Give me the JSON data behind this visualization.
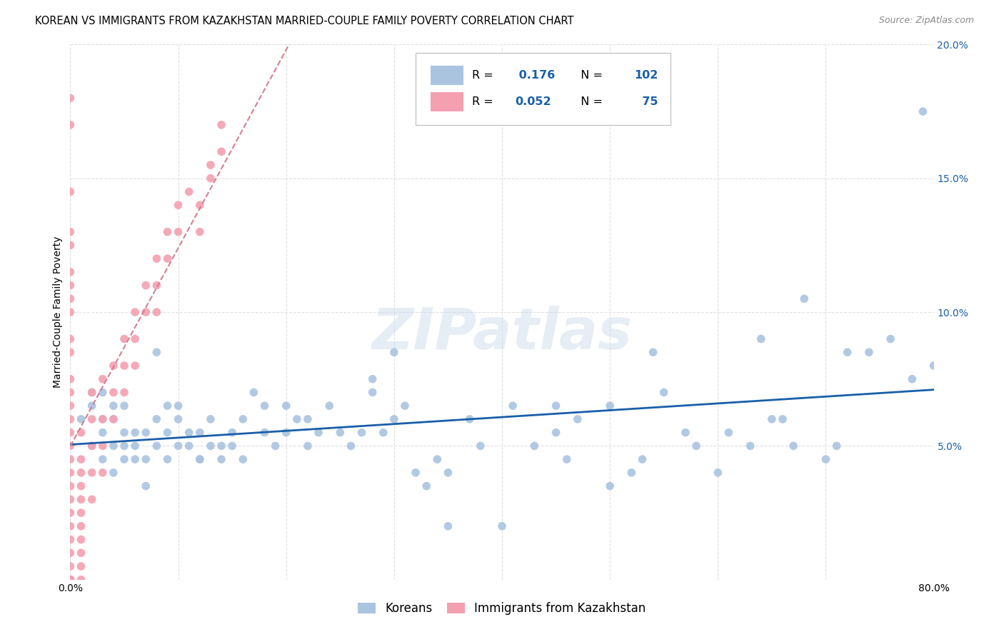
{
  "title": "KOREAN VS IMMIGRANTS FROM KAZAKHSTAN MARRIED-COUPLE FAMILY POVERTY CORRELATION CHART",
  "source": "Source: ZipAtlas.com",
  "ylabel": "Married-Couple Family Poverty",
  "xlabel": "",
  "xlim": [
    0,
    0.8
  ],
  "ylim": [
    0,
    0.2
  ],
  "xticks": [
    0.0,
    0.1,
    0.2,
    0.3,
    0.4,
    0.5,
    0.6,
    0.7,
    0.8
  ],
  "yticks": [
    0.0,
    0.05,
    0.1,
    0.15,
    0.2
  ],
  "background_color": "#ffffff",
  "grid_color": "#e0e0e0",
  "watermark": "ZIPatlas",
  "korean_color": "#aac4e0",
  "kazakh_color": "#f4a0b0",
  "korean_line_color": "#1a5fa8",
  "kazakh_line_color": "#d48090",
  "korean_R": 0.176,
  "korean_N": 102,
  "kazakh_R": 0.052,
  "kazakh_N": 75,
  "korean_scatter_x": [
    0.01,
    0.02,
    0.02,
    0.02,
    0.03,
    0.03,
    0.03,
    0.03,
    0.04,
    0.04,
    0.04,
    0.04,
    0.05,
    0.05,
    0.05,
    0.05,
    0.06,
    0.06,
    0.06,
    0.07,
    0.07,
    0.07,
    0.08,
    0.08,
    0.08,
    0.09,
    0.09,
    0.09,
    0.1,
    0.1,
    0.1,
    0.11,
    0.11,
    0.12,
    0.12,
    0.12,
    0.13,
    0.13,
    0.14,
    0.14,
    0.15,
    0.15,
    0.16,
    0.16,
    0.17,
    0.18,
    0.18,
    0.19,
    0.2,
    0.2,
    0.21,
    0.22,
    0.22,
    0.23,
    0.24,
    0.25,
    0.26,
    0.27,
    0.28,
    0.28,
    0.29,
    0.3,
    0.3,
    0.31,
    0.32,
    0.33,
    0.34,
    0.35,
    0.35,
    0.37,
    0.38,
    0.4,
    0.41,
    0.43,
    0.45,
    0.45,
    0.46,
    0.47,
    0.5,
    0.5,
    0.52,
    0.53,
    0.54,
    0.55,
    0.57,
    0.58,
    0.6,
    0.61,
    0.63,
    0.65,
    0.67,
    0.68,
    0.7,
    0.71,
    0.72,
    0.74,
    0.76,
    0.78,
    0.79,
    0.8,
    0.64,
    0.66
  ],
  "korean_scatter_y": [
    0.06,
    0.07,
    0.065,
    0.05,
    0.07,
    0.045,
    0.055,
    0.06,
    0.06,
    0.05,
    0.04,
    0.065,
    0.045,
    0.065,
    0.055,
    0.05,
    0.05,
    0.045,
    0.055,
    0.055,
    0.035,
    0.045,
    0.085,
    0.06,
    0.05,
    0.065,
    0.045,
    0.055,
    0.06,
    0.065,
    0.05,
    0.05,
    0.055,
    0.045,
    0.055,
    0.045,
    0.05,
    0.06,
    0.045,
    0.05,
    0.05,
    0.055,
    0.045,
    0.06,
    0.07,
    0.055,
    0.065,
    0.05,
    0.055,
    0.065,
    0.06,
    0.06,
    0.05,
    0.055,
    0.065,
    0.055,
    0.05,
    0.055,
    0.075,
    0.07,
    0.055,
    0.06,
    0.085,
    0.065,
    0.04,
    0.035,
    0.045,
    0.04,
    0.02,
    0.06,
    0.05,
    0.02,
    0.065,
    0.05,
    0.055,
    0.065,
    0.045,
    0.06,
    0.035,
    0.065,
    0.04,
    0.045,
    0.085,
    0.07,
    0.055,
    0.05,
    0.04,
    0.055,
    0.05,
    0.06,
    0.05,
    0.105,
    0.045,
    0.05,
    0.085,
    0.085,
    0.09,
    0.075,
    0.175,
    0.08,
    0.09,
    0.06
  ],
  "kazakh_scatter_x": [
    0.0,
    0.0,
    0.0,
    0.0,
    0.0,
    0.0,
    0.0,
    0.0,
    0.0,
    0.0,
    0.0,
    0.0,
    0.0,
    0.0,
    0.0,
    0.0,
    0.0,
    0.0,
    0.0,
    0.0,
    0.01,
    0.01,
    0.01,
    0.01,
    0.01,
    0.01,
    0.01,
    0.02,
    0.02,
    0.02,
    0.02,
    0.02,
    0.03,
    0.03,
    0.03,
    0.03,
    0.04,
    0.04,
    0.04,
    0.05,
    0.05,
    0.05,
    0.06,
    0.06,
    0.06,
    0.07,
    0.07,
    0.08,
    0.08,
    0.08,
    0.09,
    0.09,
    0.1,
    0.1,
    0.11,
    0.12,
    0.12,
    0.13,
    0.13,
    0.14,
    0.14,
    0.0,
    0.0,
    0.0,
    0.0,
    0.0,
    0.0,
    0.0,
    0.0,
    0.0,
    0.0,
    0.01,
    0.01,
    0.01,
    0.01
  ],
  "kazakh_scatter_y": [
    0.18,
    0.17,
    0.145,
    0.13,
    0.125,
    0.115,
    0.11,
    0.105,
    0.1,
    0.09,
    0.085,
    0.075,
    0.07,
    0.065,
    0.06,
    0.055,
    0.05,
    0.04,
    0.03,
    0.02,
    0.055,
    0.045,
    0.04,
    0.035,
    0.025,
    0.015,
    0.005,
    0.07,
    0.06,
    0.05,
    0.04,
    0.03,
    0.075,
    0.06,
    0.05,
    0.04,
    0.08,
    0.07,
    0.06,
    0.09,
    0.08,
    0.07,
    0.1,
    0.09,
    0.08,
    0.11,
    0.1,
    0.12,
    0.11,
    0.1,
    0.13,
    0.12,
    0.14,
    0.13,
    0.145,
    0.14,
    0.13,
    0.15,
    0.155,
    0.16,
    0.17,
    0.01,
    0.005,
    0.015,
    0.025,
    0.035,
    0.045,
    0.0,
    0.0,
    0.0,
    0.0,
    0.01,
    0.02,
    0.0,
    0.03
  ]
}
